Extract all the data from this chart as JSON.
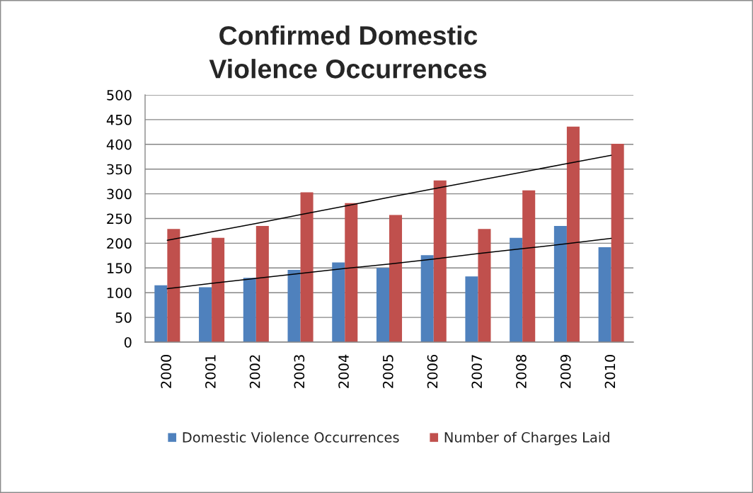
{
  "chart_data": {
    "type": "bar",
    "title": "Confirmed Domestic\nViolence Occurrences",
    "categories": [
      "2000",
      "2001",
      "2002",
      "2003",
      "2004",
      "2005",
      "2006",
      "2007",
      "2008",
      "2009",
      "2010"
    ],
    "series": [
      {
        "name": "Domestic Violence Occurrences",
        "color": "#4f81bd",
        "values": [
          115,
          111,
          130,
          146,
          161,
          150,
          176,
          133,
          211,
          235,
          192
        ]
      },
      {
        "name": "Number of Charges Laid",
        "color": "#c0504d",
        "values": [
          229,
          211,
          235,
          303,
          281,
          257,
          327,
          229,
          307,
          436,
          401
        ]
      },
      {
        "type": "line",
        "color": "#000000",
        "values": [
          108,
          119,
          129,
          139,
          149,
          158,
          168,
          179,
          189,
          199,
          210
        ]
      },
      {
        "type": "line",
        "color": "#000000",
        "values": [
          206,
          223,
          240,
          258,
          275,
          293,
          310,
          327,
          344,
          361,
          378
        ]
      }
    ],
    "ylim": [
      0,
      500
    ],
    "yticks": [
      0,
      50,
      100,
      150,
      200,
      250,
      300,
      350,
      400,
      450,
      500
    ],
    "grid": "y",
    "legend": "bottom"
  }
}
